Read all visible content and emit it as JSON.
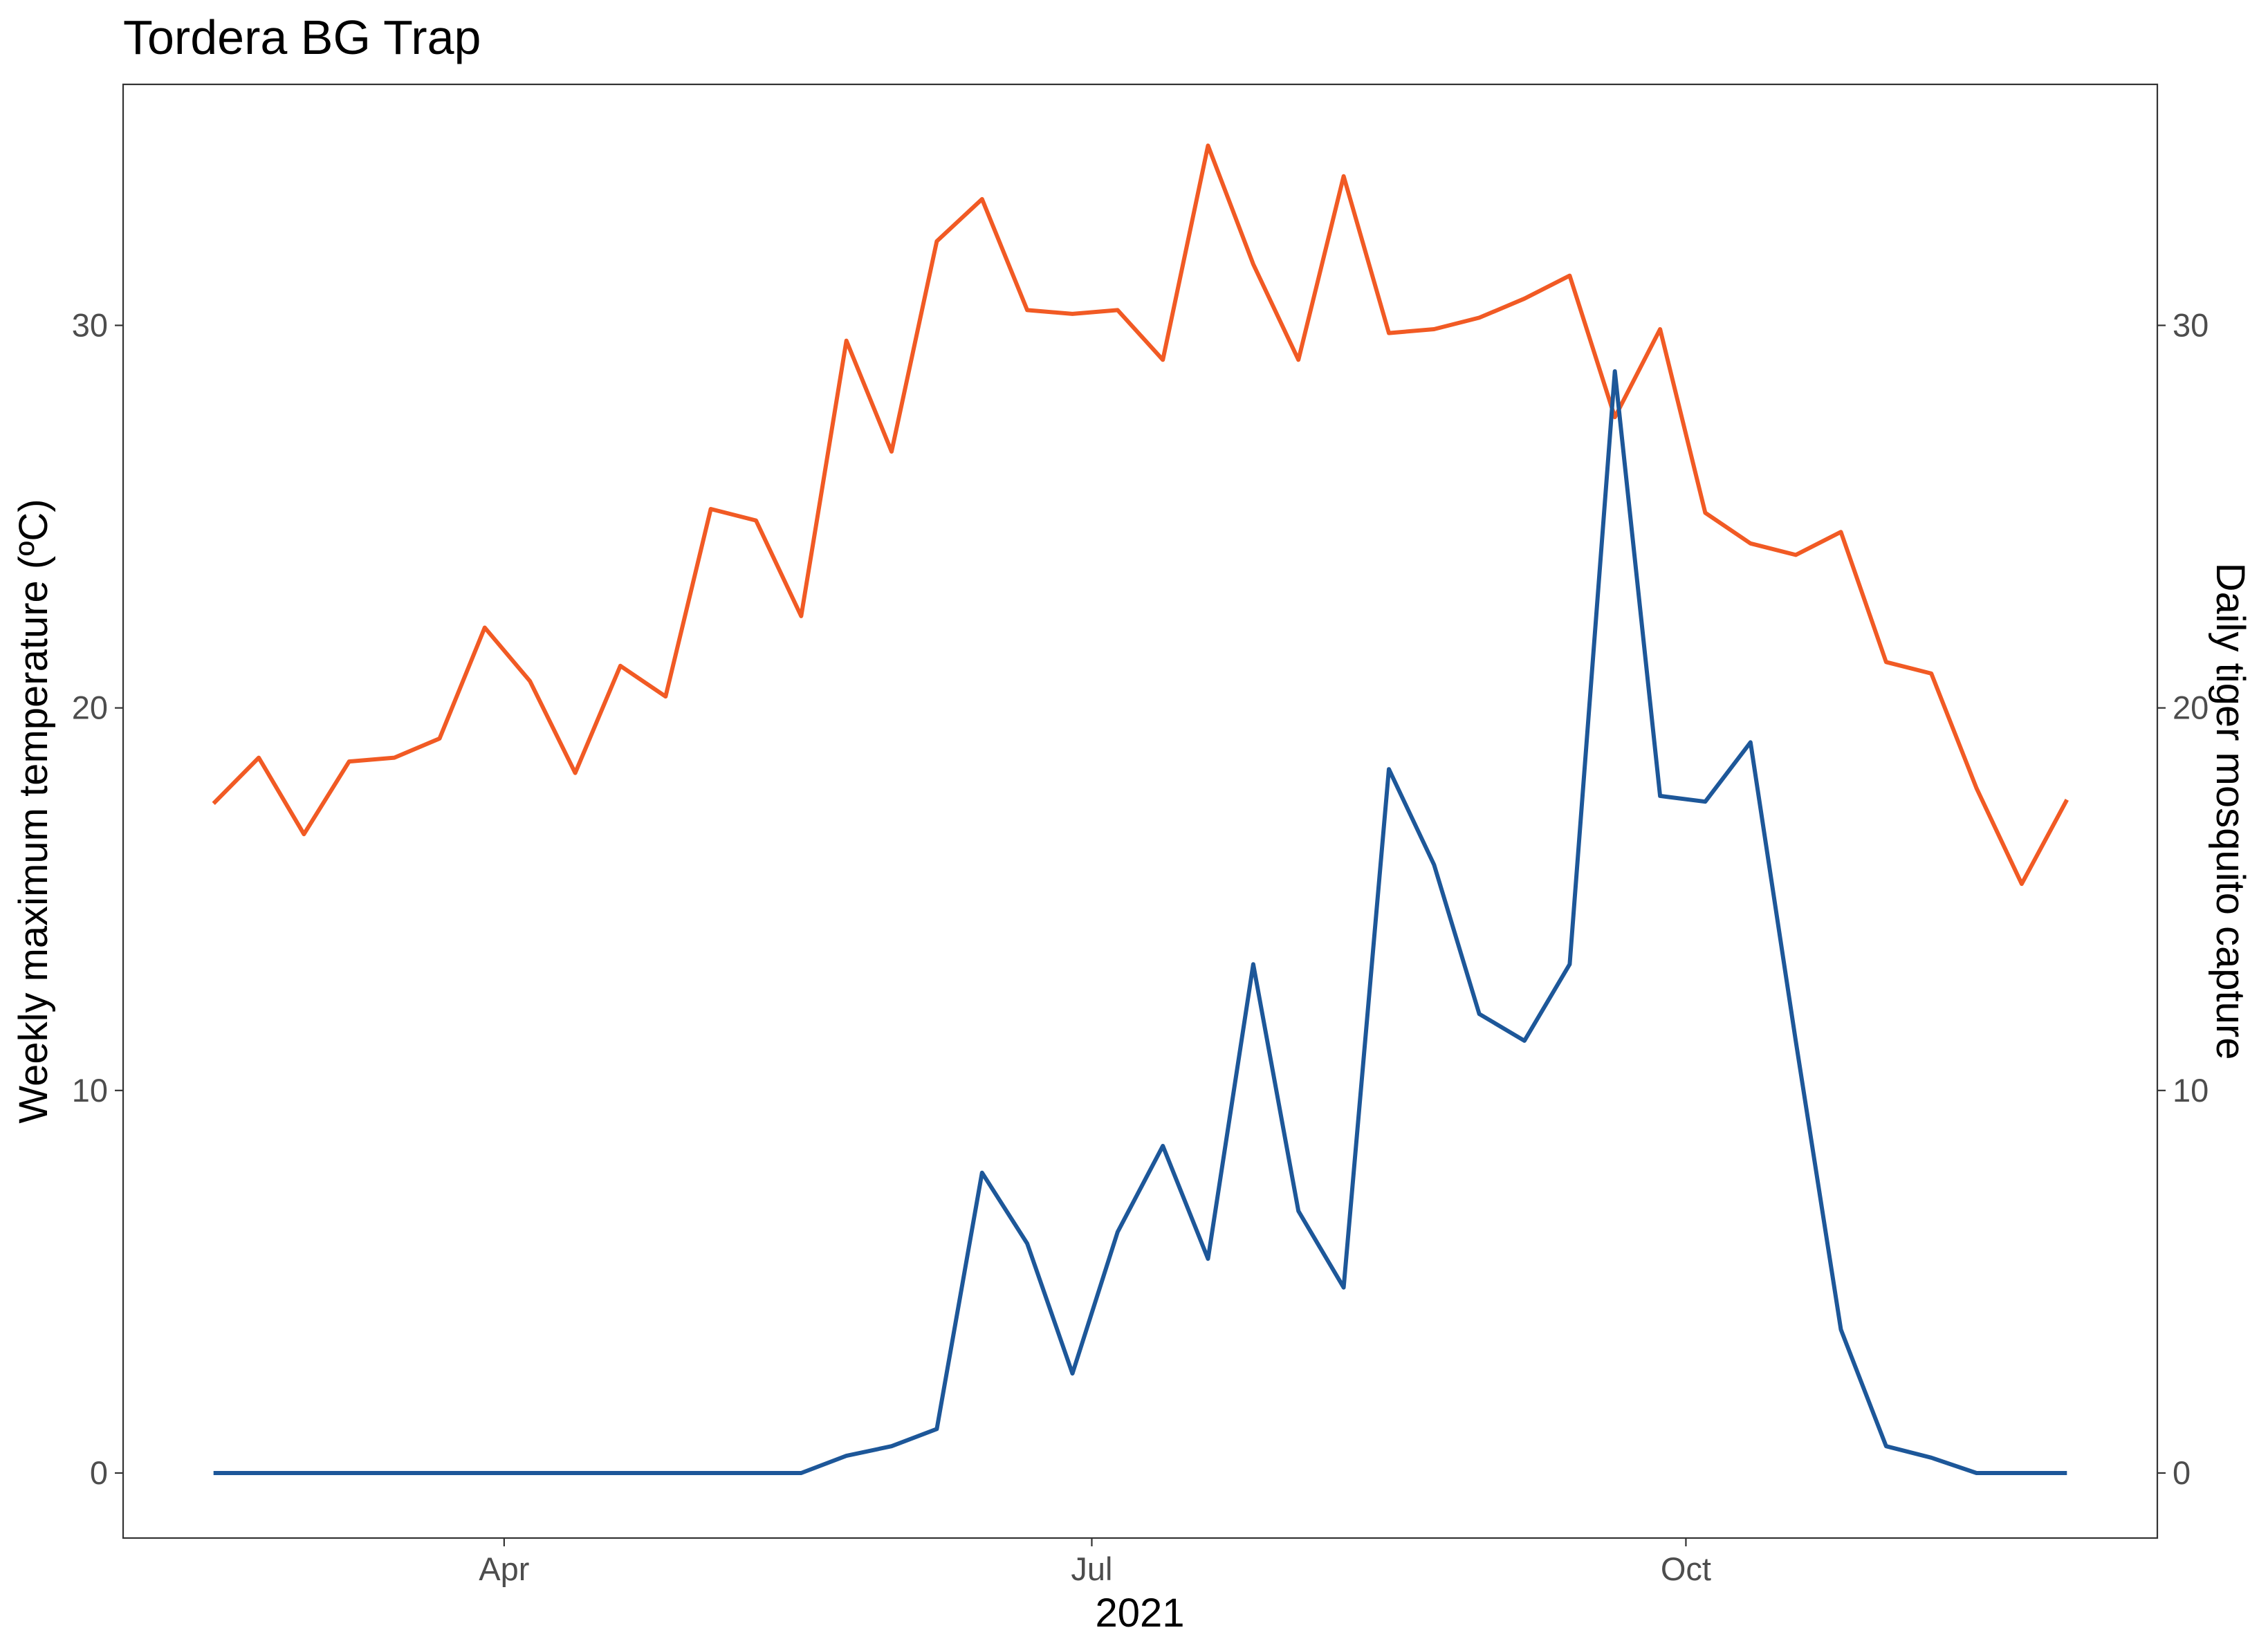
{
  "chart_data": {
    "type": "line",
    "title": "Tordera BG Trap",
    "xlabel": "2021",
    "ylabel": "Weekly maximum temperature (ºC)",
    "y2label": "Daily tiger mosquito capture",
    "x_tick_labels": [
      "Apr",
      "Jul",
      "Oct"
    ],
    "x_tick_dates": [
      "2021-04-01",
      "2021-07-01",
      "2021-10-01"
    ],
    "ylim": [
      -1.7,
      36.3
    ],
    "y_ticks": [
      0,
      10,
      20,
      30
    ],
    "y2_ticks": [
      0,
      10,
      20,
      30
    ],
    "grid": false,
    "x": [
      "2021-02-15",
      "2021-02-22",
      "2021-03-01",
      "2021-03-08",
      "2021-03-15",
      "2021-03-22",
      "2021-03-29",
      "2021-04-05",
      "2021-04-12",
      "2021-04-19",
      "2021-04-26",
      "2021-05-03",
      "2021-05-10",
      "2021-05-17",
      "2021-05-24",
      "2021-05-31",
      "2021-06-07",
      "2021-06-14",
      "2021-06-21",
      "2021-06-28",
      "2021-07-05",
      "2021-07-12",
      "2021-07-19",
      "2021-07-26",
      "2021-08-02",
      "2021-08-09",
      "2021-08-16",
      "2021-08-23",
      "2021-08-30",
      "2021-09-06",
      "2021-09-13",
      "2021-09-20",
      "2021-09-27",
      "2021-10-04",
      "2021-10-11",
      "2021-10-18",
      "2021-10-25",
      "2021-11-01",
      "2021-11-08",
      "2021-11-15",
      "2021-11-22",
      "2021-11-29"
    ],
    "series": [
      {
        "color": "#F15A24",
        "values": [
          17.5,
          18.7,
          16.7,
          18.6,
          18.7,
          19.2,
          22.1,
          20.7,
          18.3,
          21.1,
          20.3,
          25.2,
          24.9,
          22.4,
          29.6,
          26.7,
          32.2,
          33.3,
          30.4,
          30.3,
          30.4,
          29.1,
          34.7,
          31.6,
          29.1,
          33.9,
          29.8,
          29.9,
          30.2,
          30.7,
          31.3,
          27.6,
          29.9,
          25.1,
          24.3,
          24.0,
          24.6,
          21.2,
          20.9,
          17.9,
          15.4,
          17.6
        ]
      },
      {
        "color": "#1D5799",
        "values": [
          0,
          0,
          0,
          0,
          0,
          0,
          0,
          0,
          0,
          0,
          0,
          0,
          0,
          0,
          0.45,
          0.7,
          1.15,
          7.85,
          6.0,
          2.6,
          6.3,
          8.55,
          5.6,
          13.3,
          6.85,
          4.85,
          18.4,
          15.9,
          12.0,
          11.3,
          13.3,
          28.8,
          17.7,
          17.55,
          19.1,
          11.3,
          3.75,
          0.7,
          0.4,
          0,
          0,
          0
        ]
      }
    ]
  }
}
